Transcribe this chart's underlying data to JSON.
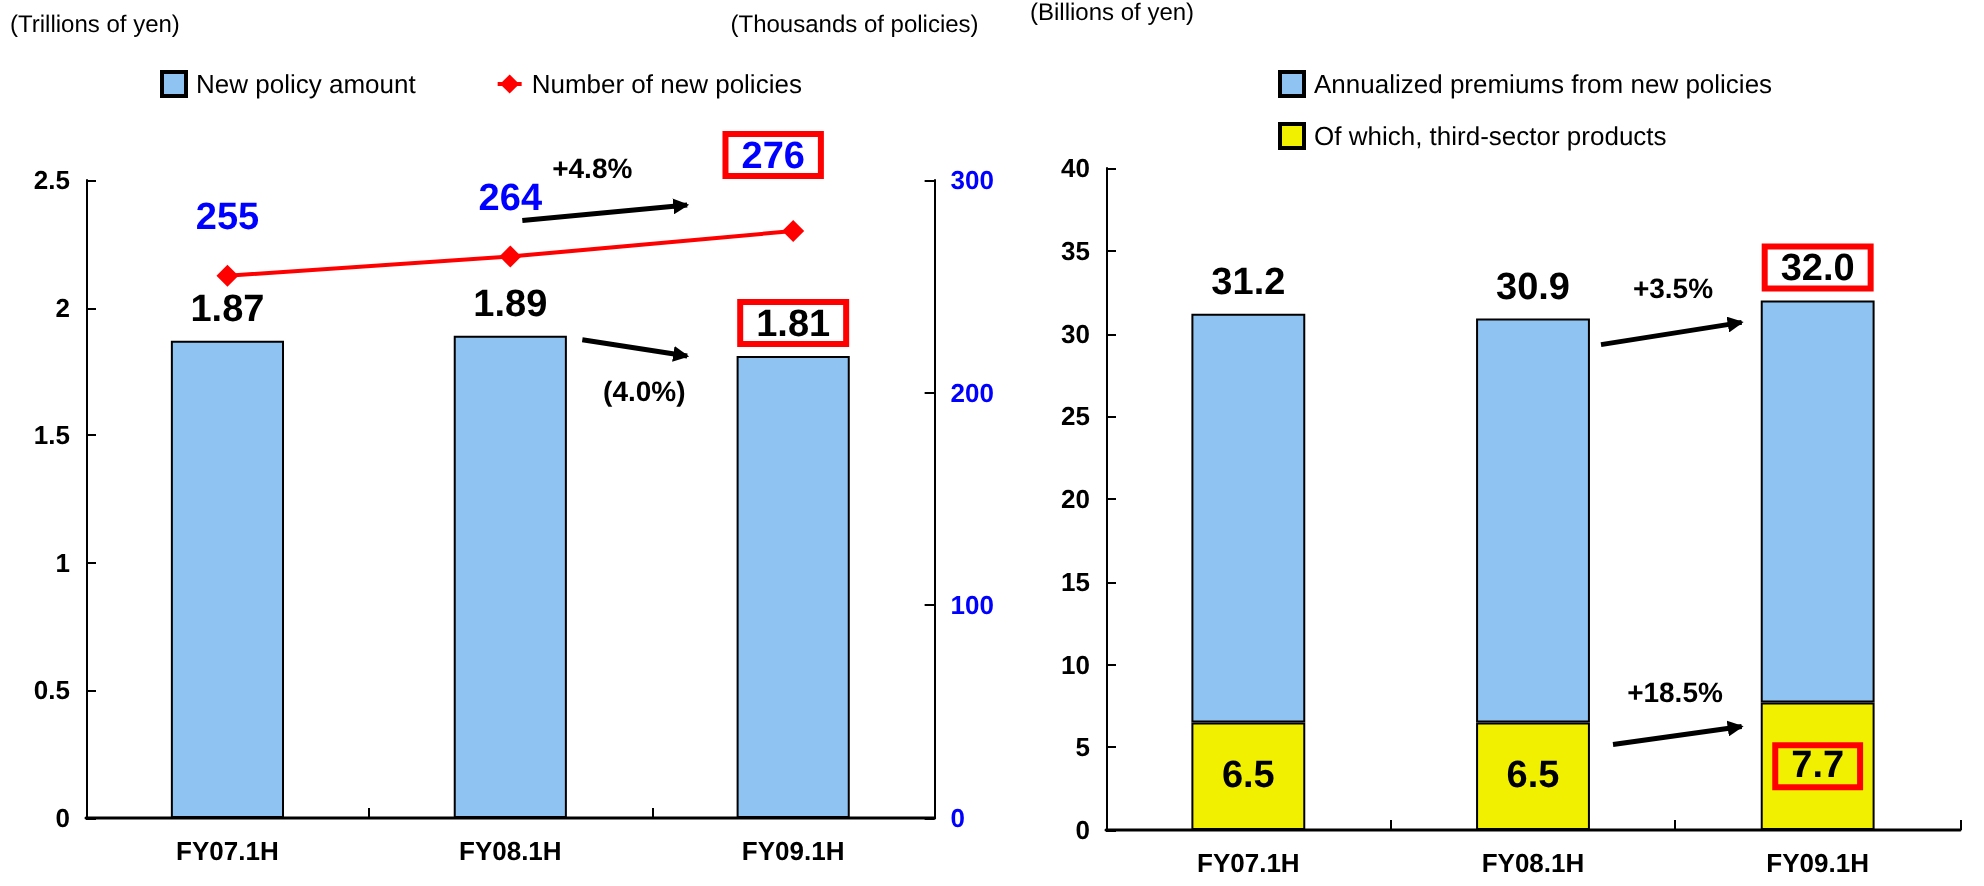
{
  "chart_data": [
    {
      "type": "bar",
      "ylabel": "(Trillions of yen)",
      "y2label": "(Thousands of policies)",
      "categories": [
        "FY07.1H",
        "FY08.1H",
        "FY09.1H"
      ],
      "series": [
        {
          "name": "New policy amount",
          "color": "#8fc3f2",
          "values": [
            1.87,
            1.89,
            1.81
          ]
        },
        {
          "name": "Number of new policies",
          "type": "line",
          "axis": "y2",
          "color": "#ff0000",
          "values": [
            255,
            264,
            276
          ]
        }
      ],
      "ylim": [
        0,
        2.5
      ],
      "yticks": [
        0,
        0.5,
        1,
        1.5,
        2,
        2.5
      ],
      "y2lim": [
        0,
        300
      ],
      "y2ticks": [
        0,
        100,
        200,
        300
      ],
      "data_labels": true,
      "marker": "diamond",
      "legend": "top",
      "annotations": [
        "+4.8%",
        "(4.0%)"
      ]
    },
    {
      "type": "bar",
      "stacked": true,
      "ylabel": "(Billions of yen)",
      "categories": [
        "FY07.1H",
        "FY08.1H",
        "FY09.1H"
      ],
      "series": [
        {
          "name": "Of which, third-sector products",
          "color": "#f0f000",
          "values": [
            6.5,
            6.5,
            7.7
          ],
          "value_labels": [
            "6.5",
            "6.5",
            "7.7"
          ]
        },
        {
          "name": "Annualized premiums from new policies",
          "color": "#8fc3f2",
          "values": [
            24.7,
            24.4,
            24.3
          ]
        }
      ],
      "totals": [
        "31.2",
        "30.9",
        "32.0"
      ],
      "ylim": [
        0,
        40
      ],
      "yticks": [
        0,
        5,
        10,
        15,
        20,
        25,
        30,
        35,
        40
      ],
      "legend": "top",
      "annotations": [
        "+3.5%",
        "+18.5%"
      ]
    }
  ]
}
